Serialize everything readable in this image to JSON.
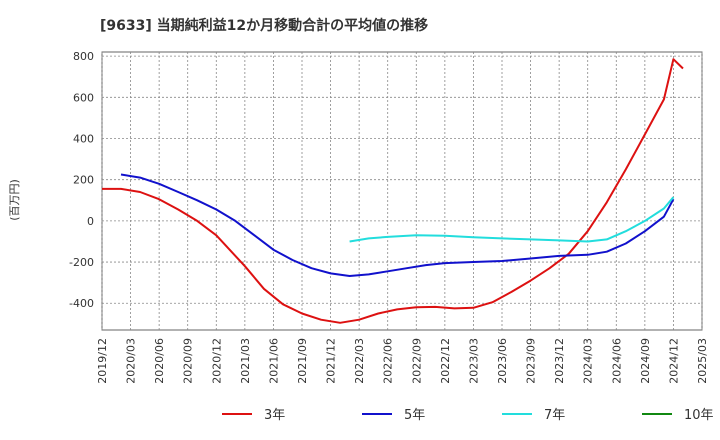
{
  "chart_data": {
    "type": "line",
    "title": "[9633]  当期純利益12か月移動合計の平均値の推移",
    "ylabel": "(百万円)",
    "xlabel": "",
    "ylim": [
      -530,
      820
    ],
    "y_ticks": [
      -400,
      -200,
      0,
      200,
      400,
      600,
      800
    ],
    "x_ticks": [
      "2019/12",
      "2020/03",
      "2020/06",
      "2020/09",
      "2020/12",
      "2021/03",
      "2021/06",
      "2021/09",
      "2021/12",
      "2022/03",
      "2022/06",
      "2022/09",
      "2022/12",
      "2023/03",
      "2023/06",
      "2023/09",
      "2023/12",
      "2024/03",
      "2024/06",
      "2024/09",
      "2024/12",
      "2025/03"
    ],
    "grid": true,
    "legend_position": "bottom",
    "series": [
      {
        "name": "3年",
        "color": "#dd1111",
        "points": [
          [
            "2019/12",
            155
          ],
          [
            "2020/02",
            155
          ],
          [
            "2020/04",
            140
          ],
          [
            "2020/06",
            105
          ],
          [
            "2020/08",
            55
          ],
          [
            "2020/10",
            0
          ],
          [
            "2020/12",
            -70
          ],
          [
            "2021/01",
            -120
          ],
          [
            "2021/03",
            -220
          ],
          [
            "2021/05",
            -330
          ],
          [
            "2021/07",
            -405
          ],
          [
            "2021/09",
            -450
          ],
          [
            "2021/11",
            -480
          ],
          [
            "2022/01",
            -495
          ],
          [
            "2022/03",
            -480
          ],
          [
            "2022/05",
            -450
          ],
          [
            "2022/07",
            -430
          ],
          [
            "2022/09",
            -420
          ],
          [
            "2022/11",
            -418
          ],
          [
            "2023/01",
            -425
          ],
          [
            "2023/03",
            -422
          ],
          [
            "2023/05",
            -395
          ],
          [
            "2023/07",
            -345
          ],
          [
            "2023/09",
            -290
          ],
          [
            "2023/11",
            -230
          ],
          [
            "2024/01",
            -160
          ],
          [
            "2024/03",
            -50
          ],
          [
            "2024/05",
            90
          ],
          [
            "2024/07",
            250
          ],
          [
            "2024/09",
            420
          ],
          [
            "2024/11",
            590
          ],
          [
            "2025/01",
            740
          ],
          [
            "2024/12",
            785
          ]
        ]
      },
      {
        "name": "5年",
        "color": "#1111cc",
        "points": [
          [
            "2020/02",
            225
          ],
          [
            "2020/04",
            210
          ],
          [
            "2020/06",
            180
          ],
          [
            "2020/08",
            140
          ],
          [
            "2020/10",
            100
          ],
          [
            "2020/12",
            55
          ],
          [
            "2021/02",
            0
          ],
          [
            "2021/04",
            -70
          ],
          [
            "2021/06",
            -140
          ],
          [
            "2021/08",
            -190
          ],
          [
            "2021/10",
            -230
          ],
          [
            "2021/12",
            -255
          ],
          [
            "2022/02",
            -268
          ],
          [
            "2022/04",
            -260
          ],
          [
            "2022/06",
            -245
          ],
          [
            "2022/08",
            -230
          ],
          [
            "2022/10",
            -215
          ],
          [
            "2022/12",
            -205
          ],
          [
            "2023/03",
            -200
          ],
          [
            "2023/06",
            -195
          ],
          [
            "2023/09",
            -183
          ],
          [
            "2023/12",
            -170
          ],
          [
            "2024/03",
            -165
          ],
          [
            "2024/05",
            -150
          ],
          [
            "2024/07",
            -110
          ],
          [
            "2024/09",
            -50
          ],
          [
            "2024/11",
            20
          ],
          [
            "2024/12",
            105
          ]
        ]
      },
      {
        "name": "7年",
        "color": "#22dddd",
        "points": [
          [
            "2022/02",
            -100
          ],
          [
            "2022/04",
            -85
          ],
          [
            "2022/06",
            -78
          ],
          [
            "2022/09",
            -70
          ],
          [
            "2022/12",
            -72
          ],
          [
            "2023/03",
            -80
          ],
          [
            "2023/06",
            -85
          ],
          [
            "2023/09",
            -90
          ],
          [
            "2023/12",
            -95
          ],
          [
            "2024/03",
            -100
          ],
          [
            "2024/05",
            -90
          ],
          [
            "2024/07",
            -50
          ],
          [
            "2024/09",
            0
          ],
          [
            "2024/11",
            60
          ],
          [
            "2024/12",
            115
          ]
        ]
      },
      {
        "name": "10年",
        "color": "#118811",
        "points": []
      }
    ]
  }
}
